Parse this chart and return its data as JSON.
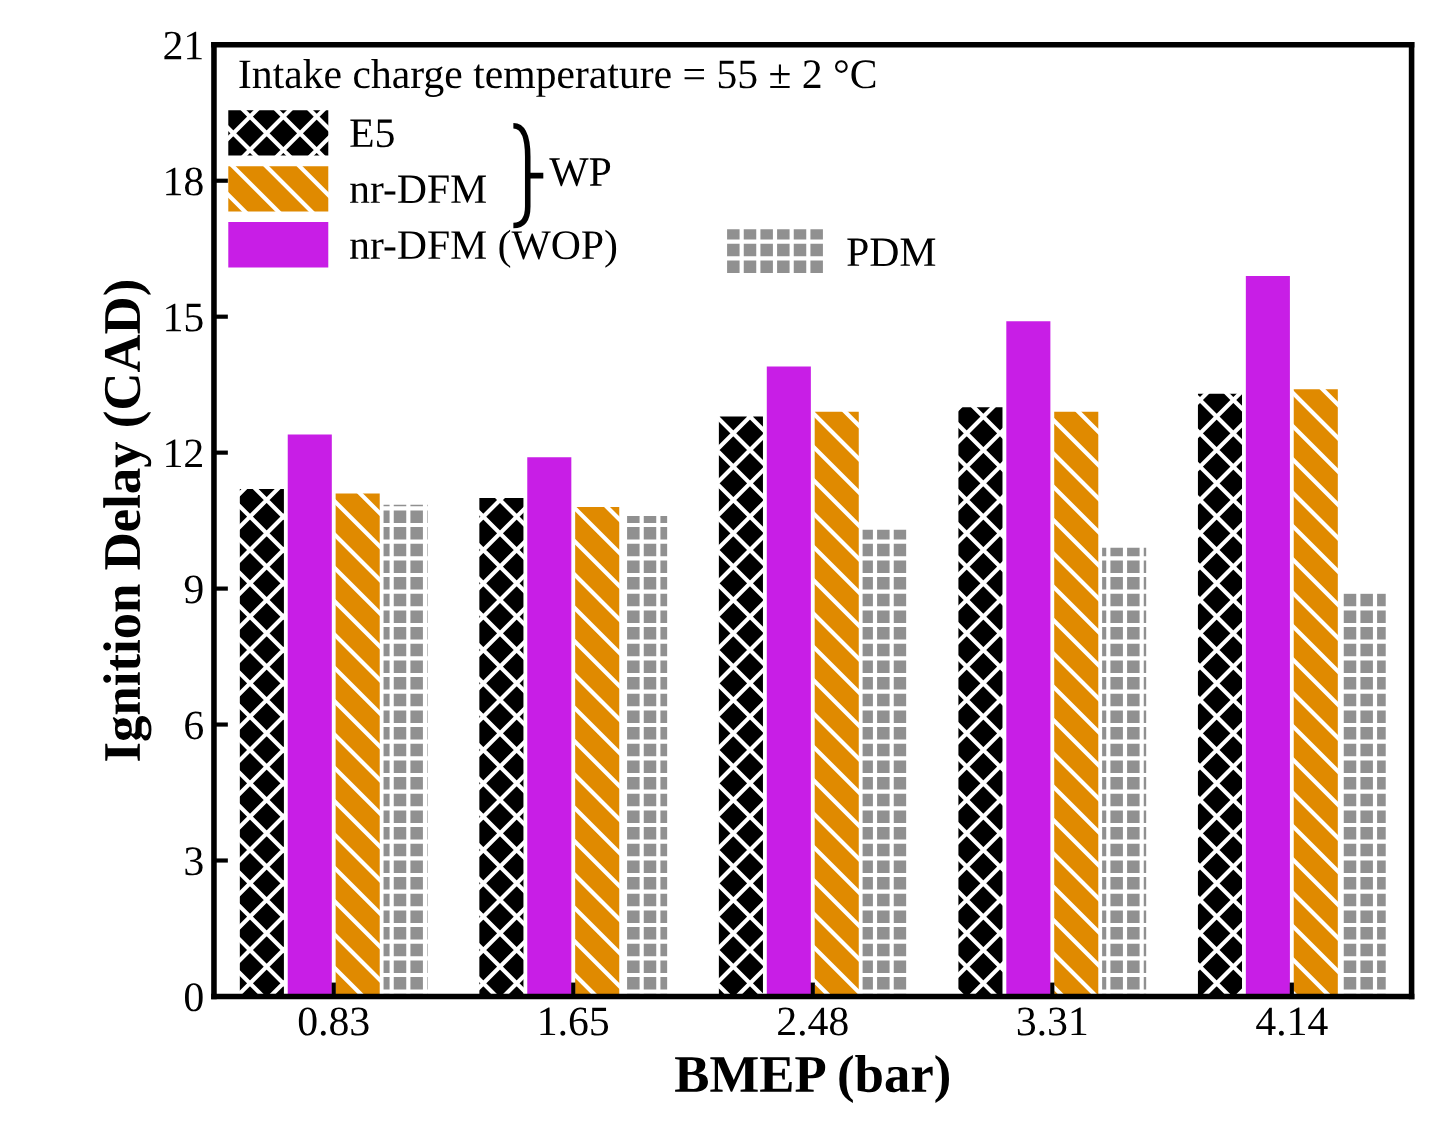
{
  "chart_data": {
    "type": "bar",
    "xlabel": "BMEP (bar)",
    "ylabel": "Ignition Delay (CAD)",
    "categories": [
      "0.83",
      "1.65",
      "2.48",
      "3.31",
      "4.14"
    ],
    "series": [
      {
        "name": "E5",
        "color": "#000000",
        "values": [
          11.2,
          11.0,
          12.8,
          13.0,
          13.3
        ]
      },
      {
        "name": "nr-DFM (WOP)",
        "color": "#c81ee6",
        "values": [
          12.4,
          11.9,
          13.9,
          14.9,
          15.9
        ]
      },
      {
        "name": "nr-DFM",
        "color": "#e08a00",
        "values": [
          11.1,
          10.8,
          12.9,
          12.9,
          13.4
        ]
      },
      {
        "name": "PDM",
        "color": "#909090",
        "values": [
          10.85,
          10.6,
          10.3,
          9.9,
          8.9
        ]
      }
    ],
    "ylim": [
      0,
      21
    ],
    "yticks": [
      0,
      3,
      6,
      9,
      12,
      15,
      18,
      21
    ],
    "annotations": [
      "Intake charge temperature = 55 ± 2 °C",
      "WP"
    ],
    "legend": "top left",
    "grid": false
  }
}
